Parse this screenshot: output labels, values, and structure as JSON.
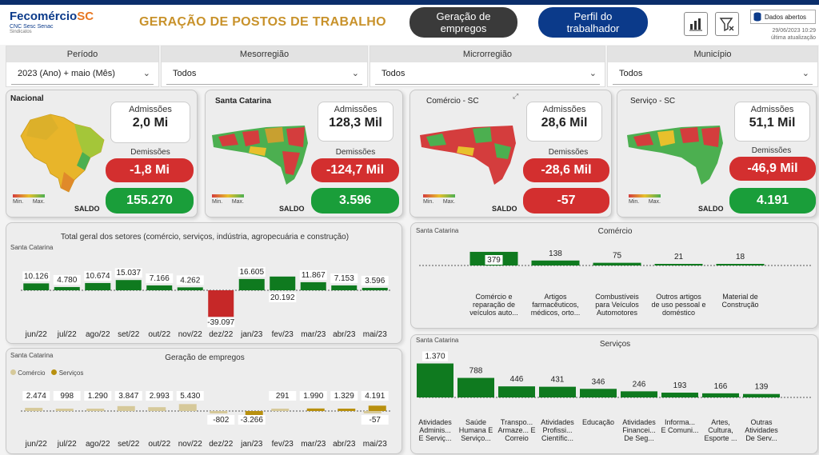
{
  "header": {
    "logo_text": "Fecomércio",
    "logo_sc": "SC",
    "logo_sub": "CNC Sesc Senac",
    "logo_sub2": "Sindicatos",
    "title": "GERAÇÃO DE POSTOS DE TRABALHO",
    "nav_geracao": "Geração de empregos",
    "nav_perfil": "Perfil do trabalhador",
    "dados_abertos": "Dados abertos",
    "update_date": "29/06/2023 10:29",
    "update_label": "última atualização"
  },
  "filters": [
    {
      "label": "Período",
      "value": "2023 (Ano) + maio (Mês)"
    },
    {
      "label": "Mesorregião",
      "value": "Todos"
    },
    {
      "label": "Microrregião",
      "value": "Todos"
    },
    {
      "label": "Município",
      "value": "Todos"
    }
  ],
  "cards": {
    "nacional": {
      "title": "Nacional",
      "adm_label": "Admissões",
      "adm": "2,0 Mi",
      "dem_label": "Demissões",
      "dem": "-1,8 Mi",
      "saldo_label": "SALDO",
      "saldo": "155.270",
      "min": "Min.",
      "max": "Max."
    },
    "sc": {
      "title": "Santa Catarina",
      "adm_label": "Admissões",
      "adm": "128,3 Mil",
      "dem_label": "Demissões",
      "dem": "-124,7 Mil",
      "saldo_label": "SALDO",
      "saldo": "3.596",
      "min": "Min.",
      "max": "Max."
    },
    "comercio": {
      "title": "Comércio - SC",
      "adm_label": "Admissões",
      "adm": "28,6 Mil",
      "dem_label": "Demissões",
      "dem": "-28,6 Mil",
      "saldo_label": "SALDO",
      "saldo": "-57",
      "min": "Min.",
      "max": "Max."
    },
    "servico": {
      "title": "Serviço - SC",
      "adm_label": "Admissões",
      "adm": "51,1 Mil",
      "dem_label": "Demissões",
      "dem": "-46,9 Mil",
      "saldo_label": "SALDO",
      "saldo": "4.191",
      "min": "Min.",
      "max": "Max."
    }
  },
  "chart_data": [
    {
      "type": "bar",
      "title": "Total geral dos setores (comércio, serviços, indústria, agropecuária e construção)",
      "subtitle": "Santa Catarina",
      "categories": [
        "jun/22",
        "jul/22",
        "ago/22",
        "set/22",
        "out/22",
        "nov/22",
        "dez/22",
        "jan/23",
        "fev/23",
        "mar/23",
        "abr/23",
        "mai/23"
      ],
      "values": [
        10126,
        4780,
        10674,
        15037,
        7166,
        4262,
        -39097,
        16605,
        20192,
        11867,
        7153,
        3596
      ],
      "labels": [
        "10.126",
        "4.780",
        "10.674",
        "15.037",
        "7.166",
        "4.262",
        "-39.097",
        "16.605",
        "20.192",
        "11.867",
        "7.153",
        "3.596"
      ],
      "colors": {
        "positive": "#0f7a1f",
        "negative": "#c62828"
      }
    },
    {
      "type": "bar",
      "title": "Geração de empregos",
      "subtitle": "Santa Catarina",
      "categories": [
        "jun/22",
        "jul/22",
        "ago/22",
        "set/22",
        "out/22",
        "nov/22",
        "dez/22",
        "jan/23",
        "fev/23",
        "mar/23",
        "abr/23",
        "mai/23"
      ],
      "series": [
        {
          "name": "Comércio",
          "color": "#d6c99a",
          "values": [
            2474,
            998,
            1290,
            3847,
            2993,
            5430,
            -802,
            null,
            291,
            null,
            null,
            -57
          ]
        },
        {
          "name": "Serviços",
          "color": "#b8900f",
          "values": [
            null,
            null,
            null,
            null,
            null,
            null,
            null,
            -3266,
            null,
            1990,
            1329,
            4191
          ]
        }
      ],
      "labels": [
        "2.474",
        "998",
        "1.290",
        "3.847",
        "2.993",
        "5.430",
        "-802",
        "-3.266",
        "291",
        "1.990",
        "1.329",
        "4.191",
        "-57"
      ],
      "legend_position": "top-left"
    },
    {
      "type": "bar",
      "title": "Comércio",
      "subtitle": "Santa Catarina",
      "categories": [
        "Comércio e reparação de veículos auto...",
        "Artigos farmacêuticos, médicos, orto...",
        "Combustíveis para Veículos Automotores",
        "Outros artigos de uso pessoal e doméstico",
        "Material de Construção"
      ],
      "values": [
        379,
        138,
        75,
        21,
        18
      ]
    },
    {
      "type": "bar",
      "title": "Serviços",
      "subtitle": "Santa Catarina",
      "categories": [
        "Atividades Adminis... E Serviç...",
        "Saúde Humana E Serviço...",
        "Transpo... Armaze... E Correio",
        "Atividades Profissi... Científic...",
        "Educação",
        "Atividades Financei... De Seg...",
        "Informa... E Comuni...",
        "Artes, Cultura, Esporte ...",
        "Outras Atividades De Serv..."
      ],
      "values": [
        1370,
        788,
        446,
        431,
        346,
        246,
        193,
        166,
        139
      ],
      "labels": [
        "1.370",
        "788",
        "446",
        "431",
        "346",
        "246",
        "193",
        "166",
        "139"
      ]
    }
  ]
}
